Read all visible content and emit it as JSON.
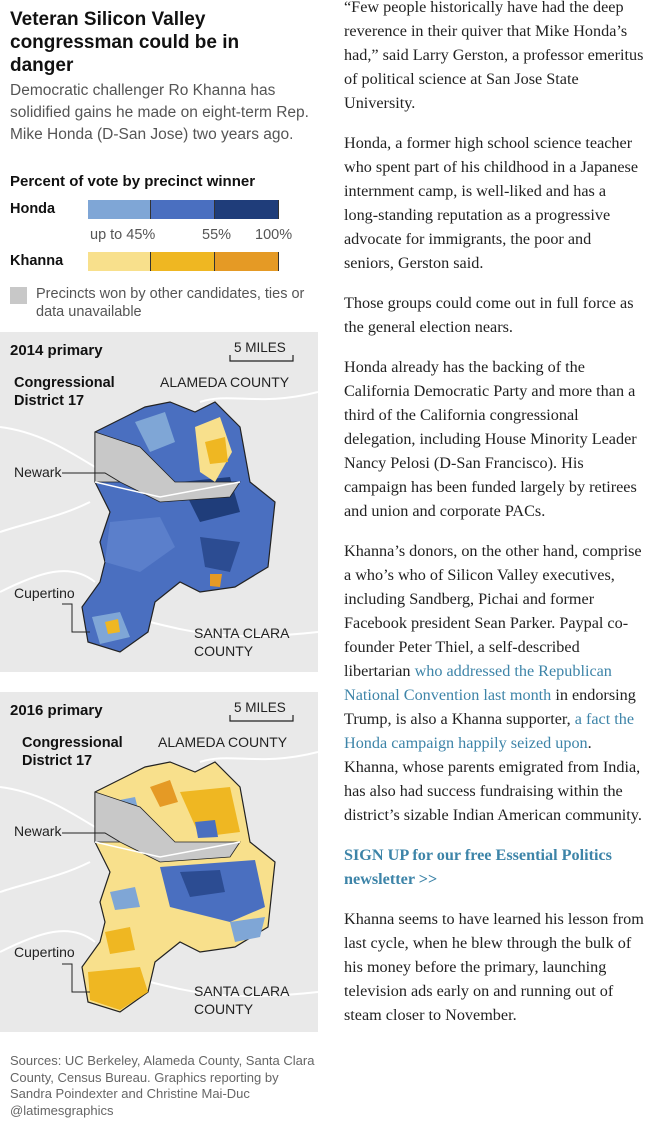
{
  "headline": "Veteran Silicon Valley congressman could be in danger",
  "dek": "Democratic challenger Ro Khanna has solidified gains he made on eight-term Rep. Mike Honda (D-San Jose) two years ago.",
  "legend": {
    "title": "Percent of vote by precinct winner",
    "honda_label": "Honda",
    "khanna_label": "Khanna",
    "ticks": [
      "up to 45%",
      "55%",
      "100%"
    ],
    "honda_colors": [
      "#7fa6d6",
      "#4a6fc0",
      "#1f3d7a"
    ],
    "khanna_colors": [
      "#f8e08c",
      "#efb722",
      "#e59a25"
    ],
    "other_color": "#c8c8c8",
    "other_text": "Precincts won by other candidates, ties or data unavailable"
  },
  "maps": [
    {
      "title": "2014 primary",
      "scale": "5 MILES",
      "district": "Congressional District 17",
      "alameda": "ALAMEDA COUNTY",
      "newark": "Newark",
      "cupertino": "Cupertino",
      "santa_clara": "SANTA CLARA COUNTY"
    },
    {
      "title": "2016 primary",
      "scale": "5 MILES",
      "district": "Congressional District 17",
      "alameda": "ALAMEDA COUNTY",
      "newark": "Newark",
      "cupertino": "Cupertino",
      "santa_clara": "SANTA CLARA COUNTY"
    }
  ],
  "sources": "Sources: UC Berkeley, Alameda County, Santa Clara County, Census Bureau. Graphics reporting by Sandra Poindexter and Christine Mai-Duc   @latimesgraphics",
  "article": {
    "p1": "“Few people historically have had the deep reverence in their quiver that Mike Honda’s had,” said Larry Gerston, a professor emeritus of political science at San Jose State University.",
    "p2": "Honda, a former high school science teacher who spent part of his childhood in a Japanese internment camp, is well-liked and has a long-standing reputation as a progressive advocate for immigrants, the poor and seniors, Gerston said.",
    "p3": "Those groups could come out in full force as the general election nears.",
    "p4": "Honda already has the backing of the California Democratic Party and more than a third of the California congressional delegation, including House Minority Leader Nancy Pelosi (D-San Francisco). His campaign has been funded largely by retirees and union and corporate PACs.",
    "p5_a": "Khanna’s donors, on the other hand, comprise a who’s who of Silicon Valley executives, including Sandberg, Pichai and former Facebook president Sean Parker. Paypal co-founder Peter Thiel, a self-described libertarian ",
    "p5_link1": "who addressed the Republican National Convention last month",
    "p5_b": " in endorsing Trump, is also a Khanna supporter, ",
    "p5_link2": "a fact the Honda campaign happily seized upon",
    "p5_c": ". Khanna, whose parents emigrated from India, has also had success fundraising within the district’s sizable Indian American community.",
    "signup": "SIGN UP for our free Essential Politics newsletter >>",
    "p6": "Khanna seems to have learned his lesson from last cycle, when he blew through the bulk of his money before the primary, launching television ads early on and running out of steam closer to November."
  }
}
